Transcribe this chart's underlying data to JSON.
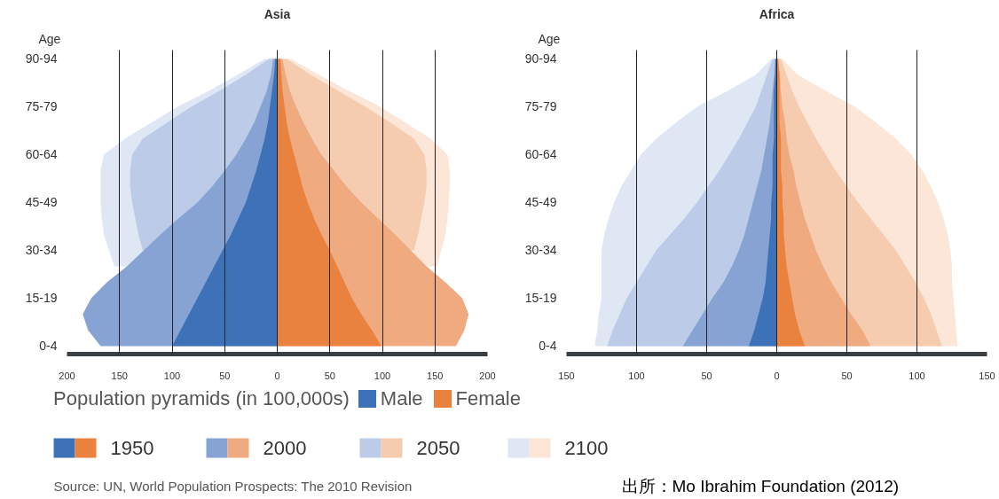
{
  "chart_data": [
    {
      "type": "area",
      "orientation": "horizontal",
      "title": "Asia",
      "ylabel": "Age",
      "categories": [
        "90-94",
        null,
        null,
        "75-79",
        null,
        null,
        "60-64",
        null,
        null,
        "45-49",
        null,
        null,
        "30-34",
        null,
        null,
        "15-19",
        null,
        null,
        "0-4"
      ],
      "xlim": [
        -200,
        200
      ],
      "xticks": [
        {
          "value": -200,
          "label": "200"
        },
        {
          "value": -150,
          "label": "150"
        },
        {
          "value": -100,
          "label": "100"
        },
        {
          "value": -50,
          "label": "50"
        },
        0,
        50,
        100,
        150,
        200
      ],
      "grid": "x",
      "legend": "bottom",
      "legend_title": "Population pyramids (in 100,000s)",
      "annotations": [
        "Male",
        "Female",
        "Source: UN, World Population Prospects: The 2010 Revision"
      ],
      "series": [
        {
          "name": "1950",
          "color": "#3d72b8",
          "values": [
            -2,
            -3,
            -5,
            -7,
            -9,
            -12,
            -16,
            -20,
            -25,
            -30,
            -37,
            -44,
            -52,
            -60,
            -68,
            -76,
            -84,
            -92,
            -100
          ]
        },
        {
          "color": "#e9813f",
          "values": [
            3,
            4,
            5,
            7,
            9,
            12,
            16,
            20,
            24,
            29,
            35,
            42,
            50,
            57,
            64,
            71,
            80,
            90,
            99
          ]
        },
        {
          "name": "2000",
          "color": "#86a3d4",
          "values": [
            -4,
            -6,
            -10,
            -16,
            -22,
            -30,
            -39,
            -50,
            -62,
            -76,
            -94,
            -111,
            -127,
            -143,
            -162,
            -177,
            -185,
            -180,
            -168
          ]
        },
        {
          "color": "#f0aa80",
          "values": [
            5,
            8,
            12,
            18,
            25,
            33,
            42,
            54,
            66,
            80,
            96,
            112,
            127,
            142,
            160,
            176,
            182,
            178,
            170
          ]
        },
        {
          "name": "2050",
          "color": "#bccbe8",
          "values": [
            -8,
            -30,
            -55,
            -82,
            -105,
            -128,
            -138,
            -140,
            -140,
            -138,
            -135,
            -132,
            -128,
            null,
            null,
            null,
            null,
            null,
            null
          ]
        },
        {
          "color": "#f6ccb0",
          "values": [
            9,
            32,
            58,
            84,
            108,
            130,
            140,
            142,
            142,
            140,
            137,
            134,
            130,
            null,
            null,
            null,
            null,
            null,
            null
          ]
        },
        {
          "name": "2100",
          "color": "#e0e7f4",
          "values": [
            -12,
            -38,
            -65,
            -95,
            -120,
            -145,
            -165,
            -168,
            -168,
            -168,
            -167,
            -165,
            -160,
            -155,
            null,
            null,
            null,
            null,
            null
          ]
        },
        {
          "color": "#fbe6d8",
          "values": [
            13,
            40,
            68,
            98,
            122,
            146,
            162,
            164,
            164,
            163,
            162,
            160,
            156,
            152,
            null,
            null,
            null,
            null,
            null
          ]
        }
      ]
    },
    {
      "type": "area",
      "orientation": "horizontal",
      "title": "Africa",
      "ylabel": "Age",
      "categories": [
        "90-94",
        null,
        null,
        "75-79",
        null,
        null,
        "60-64",
        null,
        null,
        "45-49",
        null,
        null,
        "30-34",
        null,
        null,
        "15-19",
        null,
        null,
        "0-4"
      ],
      "xlim": [
        -150,
        150
      ],
      "xticks": [
        {
          "value": -150,
          "label": "150"
        },
        {
          "value": -100,
          "label": "100"
        },
        {
          "value": -50,
          "label": "50"
        },
        0,
        50,
        100,
        150
      ],
      "grid": "x",
      "annotations": [
        "出所：Mo Ibrahim Foundation (2012)"
      ],
      "series": [
        {
          "color": "#3d72b8",
          "values": [
            -1,
            -1,
            -2,
            -2,
            -2,
            -2,
            -3,
            -3,
            -3,
            -4,
            -4,
            -5,
            -6,
            -7,
            -8,
            -10,
            -13,
            -16,
            -20
          ]
        },
        {
          "color": "#e9813f",
          "values": [
            1,
            2,
            2,
            2,
            2,
            3,
            3,
            3,
            4,
            4,
            5,
            5,
            6,
            7,
            9,
            11,
            13,
            16,
            20
          ]
        },
        {
          "color": "#86a3d4",
          "values": [
            -1,
            -2,
            -3,
            -4,
            -5,
            -7,
            -9,
            -11,
            -14,
            -17,
            -20,
            -23,
            -27,
            -32,
            -38,
            -46,
            -53,
            -60,
            -67
          ]
        },
        {
          "color": "#f0aa80",
          "values": [
            1,
            2,
            3,
            4,
            6,
            7,
            9,
            12,
            14,
            17,
            20,
            24,
            28,
            33,
            39,
            46,
            53,
            61,
            67
          ]
        },
        {
          "color": "#bccbe8",
          "values": [
            -3,
            -7,
            -11,
            -15,
            -21,
            -27,
            -34,
            -41,
            -49,
            -57,
            -66,
            -76,
            -86,
            -93,
            -100,
            -107,
            -112,
            -117,
            -121
          ]
        },
        {
          "color": "#f6ccb0",
          "values": [
            3,
            7,
            11,
            16,
            22,
            28,
            35,
            42,
            50,
            58,
            67,
            76,
            85,
            92,
            99,
            105,
            110,
            114,
            118
          ]
        },
        {
          "color": "#e0e7f4",
          "values": [
            -4,
            -15,
            -35,
            -57,
            -72,
            -86,
            -97,
            -104,
            -111,
            -116,
            -120,
            -123,
            -125,
            -125,
            -125,
            -125,
            -127,
            -128,
            -130
          ]
        },
        {
          "color": "#fbe6d8",
          "values": [
            4,
            15,
            35,
            56,
            71,
            85,
            96,
            104,
            110,
            115,
            119,
            122,
            124,
            125,
            125,
            126,
            127,
            128,
            129
          ]
        }
      ]
    }
  ]
}
